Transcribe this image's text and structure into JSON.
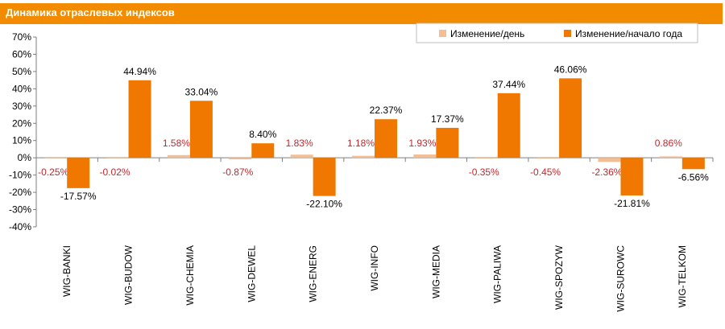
{
  "header": {
    "title": "Динамика отраслевых индексов"
  },
  "colors": {
    "header_bg": "#F28B00",
    "series_day": "#F4BE94",
    "series_ytd": "#F07800",
    "label_day": "#C0282D",
    "label_ytd": "#000000",
    "axis": "#7F7F7F"
  },
  "chart_data": {
    "type": "bar",
    "title": "Динамика отраслевых индексов",
    "xlabel": "",
    "ylabel": "",
    "ylim": [
      -0.4,
      0.7
    ],
    "yticks": [
      "70%",
      "60%",
      "50%",
      "40%",
      "30%",
      "20%",
      "10%",
      "0%",
      "-10%",
      "-20%",
      "-30%",
      "-40%"
    ],
    "legend_position": "top-right",
    "grid": false,
    "categories": [
      "WIG-BANKI",
      "WIG-BUDOW",
      "WIG-CHEMIA",
      "WIG-DEWEL",
      "WIG-ENERG",
      "WIG-INFO",
      "WIG-MEDIA",
      "WIG-PALIWA",
      "WIG-SPOZYW",
      "WIG-SUROWC",
      "WIG-TELKOM"
    ],
    "series": [
      {
        "name": "Изменение/день",
        "values": [
          -0.0025,
          -0.0002,
          0.0158,
          -0.0087,
          0.0183,
          0.0118,
          0.0193,
          -0.0035,
          -0.0045,
          -0.0236,
          0.0086
        ],
        "labels": [
          "-0.25%",
          "-0.02%",
          "1.58%",
          "-0.87%",
          "1.83%",
          "1.18%",
          "1.93%",
          "-0.35%",
          "-0.45%",
          "-2.36%",
          "0.86%"
        ]
      },
      {
        "name": "Изменение/начало года",
        "values": [
          -0.1757,
          0.4494,
          0.3304,
          0.084,
          -0.221,
          0.2237,
          0.1737,
          0.3744,
          0.4606,
          -0.2181,
          -0.0656
        ],
        "labels": [
          "-17.57%",
          "44.94%",
          "33.04%",
          "8.40%",
          "-22.10%",
          "22.37%",
          "17.37%",
          "37.44%",
          "46.06%",
          "-21.81%",
          "-6.56%"
        ]
      }
    ]
  }
}
